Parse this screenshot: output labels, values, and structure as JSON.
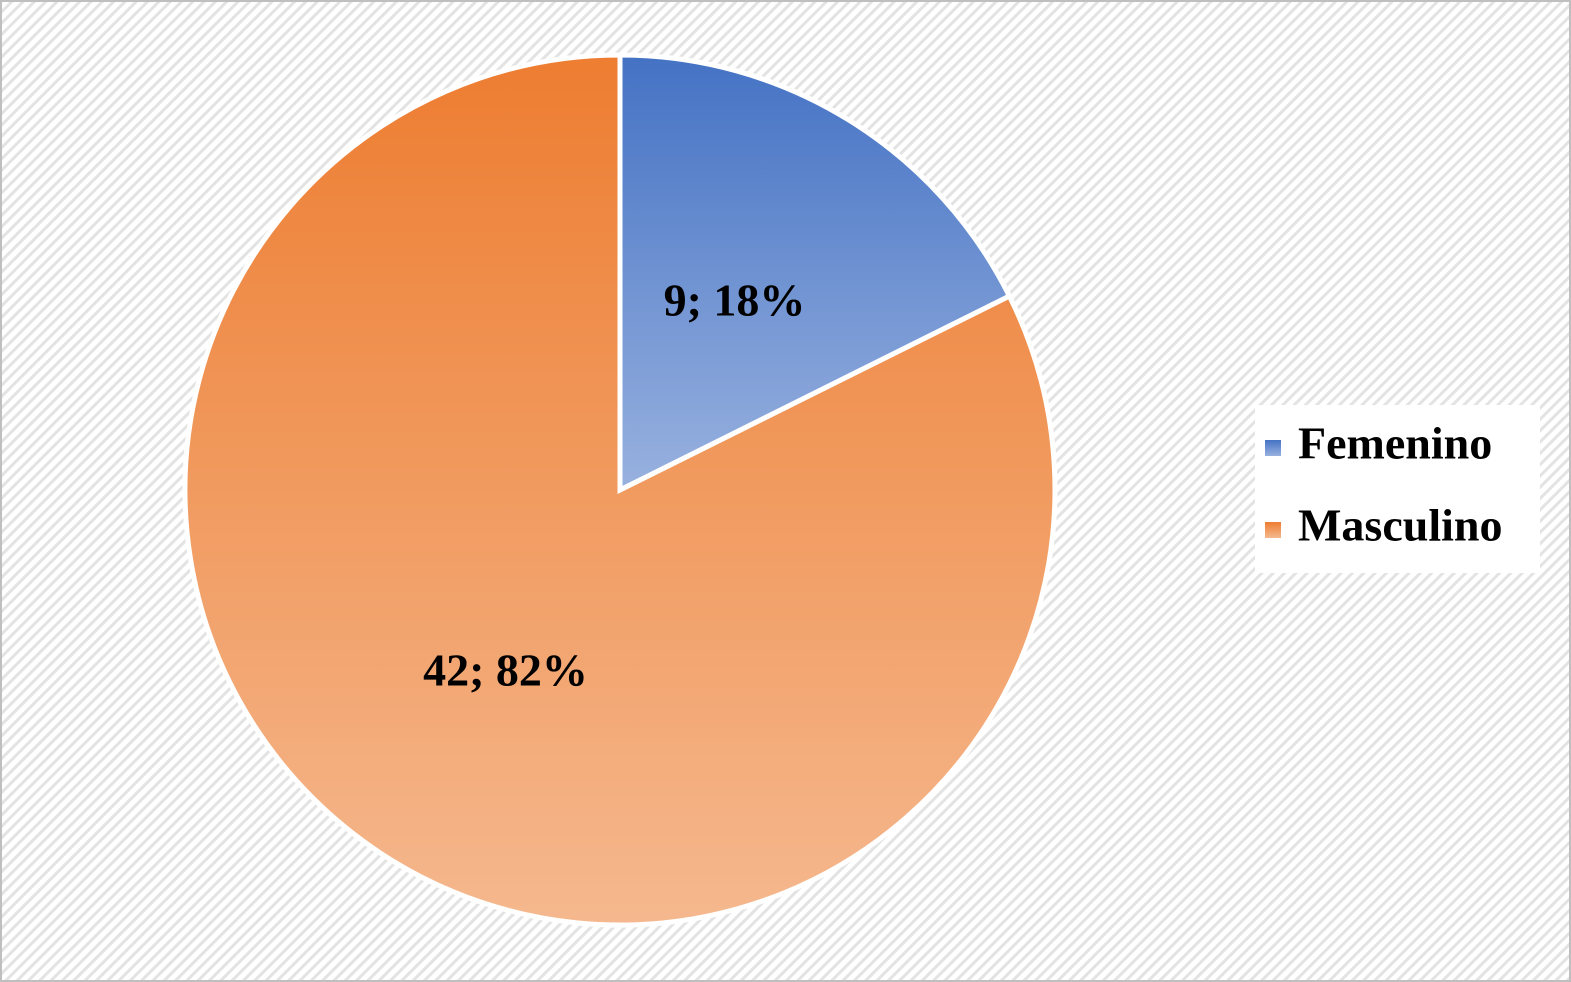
{
  "chart_data": {
    "type": "pie",
    "categories": [
      "Femenino",
      "Masculino"
    ],
    "values": [
      9,
      42
    ],
    "value_labels": [
      "9; 18%",
      "42; 82%"
    ],
    "colors": [
      "#4472c4",
      "#ed7d31"
    ],
    "legend": "right"
  }
}
